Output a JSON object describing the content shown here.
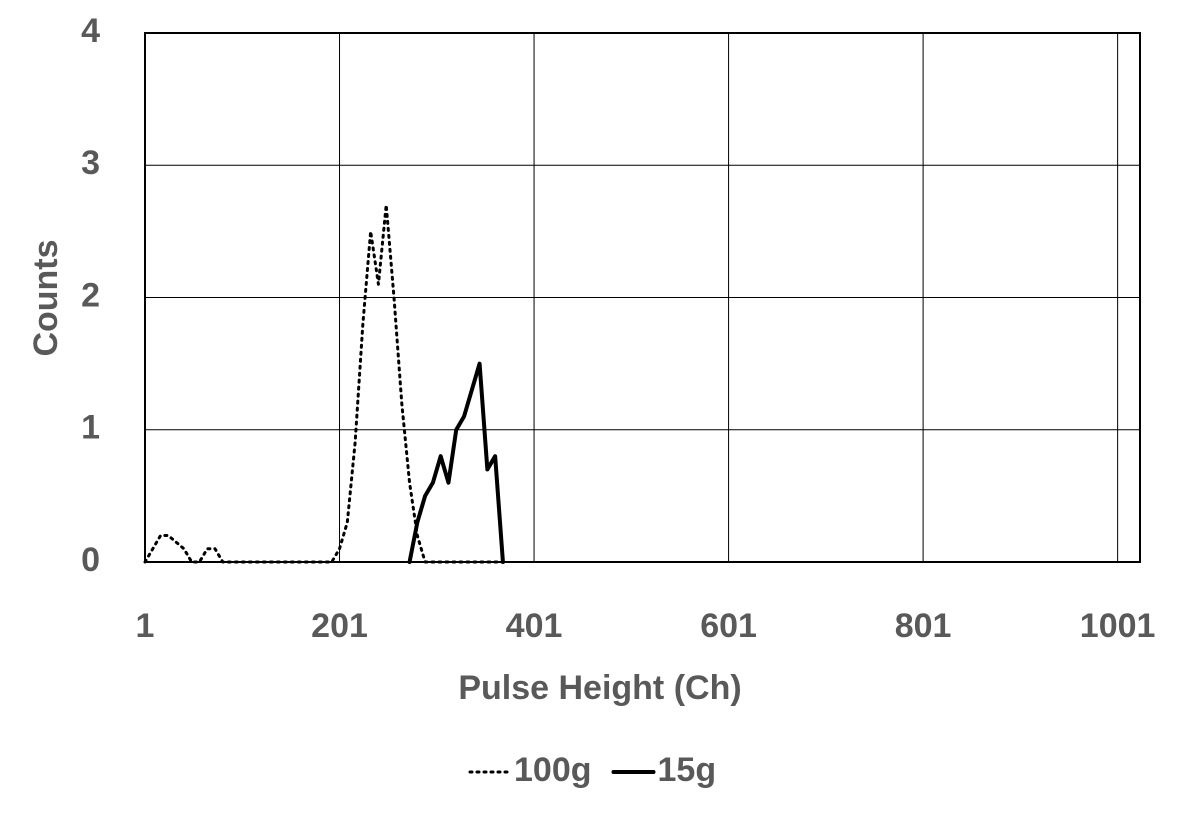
{
  "chart_data": {
    "type": "line",
    "x_label": "Pulse Height (Ch)",
    "y_label": "Counts",
    "x": [
      1,
      9,
      17,
      25,
      33,
      41,
      49,
      57,
      65,
      73,
      81,
      89,
      97,
      105,
      113,
      121,
      129,
      137,
      145,
      153,
      161,
      169,
      177,
      185,
      193,
      201,
      209,
      217,
      225,
      233,
      241,
      249,
      257,
      265,
      273,
      281,
      289,
      297,
      305,
      313,
      321,
      329,
      337,
      345,
      353,
      361,
      369
    ],
    "series": [
      {
        "name": "100g",
        "color": "#000000",
        "dash": "dotted",
        "values": [
          0,
          0.1,
          0.2,
          0.2,
          0.15,
          0.1,
          0,
          0,
          0.1,
          0.1,
          0,
          0,
          0,
          0,
          0,
          0,
          0,
          0,
          0,
          0,
          0,
          0,
          0,
          0,
          0,
          0.1,
          0.3,
          0.9,
          1.8,
          2.5,
          2.1,
          2.7,
          2.0,
          1.2,
          0.6,
          0.2,
          0,
          0,
          0,
          0,
          0,
          0,
          0,
          0,
          0,
          0,
          0
        ]
      },
      {
        "name": "15g",
        "color": "#000000",
        "dash": "solid",
        "values": [
          null,
          null,
          null,
          null,
          null,
          null,
          null,
          null,
          null,
          null,
          null,
          null,
          null,
          null,
          null,
          null,
          null,
          null,
          null,
          null,
          null,
          null,
          null,
          null,
          null,
          null,
          null,
          null,
          null,
          null,
          null,
          null,
          null,
          null,
          0,
          0.3,
          0.5,
          0.6,
          0.8,
          0.6,
          1.0,
          1.1,
          1.3,
          1.5,
          0.7,
          0.8,
          0
        ]
      }
    ],
    "xlim": [
      1,
      1024
    ],
    "xticks": [
      1,
      201,
      401,
      601,
      801,
      1001
    ],
    "ylim": [
      0,
      4
    ],
    "yticks": [
      0,
      1,
      2,
      3,
      4
    ],
    "grid": true,
    "legend": "bottom"
  }
}
